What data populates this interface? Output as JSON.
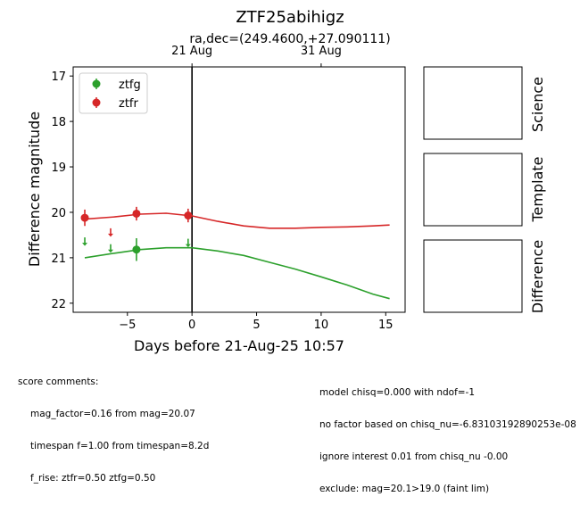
{
  "chart_data": {
    "type": "scatter",
    "title": "ZTF25abihigz",
    "subtitle": "ra,dec=(249.4600,+27.090111)",
    "xlabel": "Days before 21-Aug-25 10:57",
    "ylabel": "Difference magnitude",
    "xlim": [
      -9.2,
      16.5
    ],
    "ylim": [
      22.2,
      16.8
    ],
    "inverted_y": true,
    "grid": false,
    "legend_position": "top-left",
    "x_ticks": [
      -5,
      0,
      5,
      10,
      15
    ],
    "x_tick_labels": [
      "−5",
      "0",
      "5",
      "10",
      "15"
    ],
    "y_ticks": [
      17,
      18,
      19,
      20,
      21,
      22
    ],
    "y_tick_labels": [
      "17",
      "18",
      "19",
      "20",
      "21",
      "22"
    ],
    "top_axis": {
      "ticks": [
        0.0,
        10.0
      ],
      "labels": [
        "21 Aug",
        "31 Aug"
      ]
    },
    "vline_x": 0,
    "series": [
      {
        "name": "ztfg",
        "color": "#2ca02c",
        "detections": [
          {
            "x": -4.3,
            "y": 20.82,
            "err": 0.25
          }
        ],
        "upper_limits": [
          {
            "x": -8.3,
            "y": 20.65
          },
          {
            "x": -6.3,
            "y": 20.8
          },
          {
            "x": -0.3,
            "y": 20.68
          }
        ],
        "model_curve": [
          {
            "x": -8.3,
            "y": 21.0
          },
          {
            "x": -6,
            "y": 20.9
          },
          {
            "x": -4,
            "y": 20.82
          },
          {
            "x": -2,
            "y": 20.78
          },
          {
            "x": 0,
            "y": 20.78
          },
          {
            "x": 2,
            "y": 20.85
          },
          {
            "x": 4,
            "y": 20.95
          },
          {
            "x": 6,
            "y": 21.1
          },
          {
            "x": 8,
            "y": 21.25
          },
          {
            "x": 10,
            "y": 21.42
          },
          {
            "x": 12,
            "y": 21.6
          },
          {
            "x": 14,
            "y": 21.8
          },
          {
            "x": 15.3,
            "y": 21.9
          }
        ]
      },
      {
        "name": "ztfr",
        "color": "#d62728",
        "detections": [
          {
            "x": -8.3,
            "y": 20.12,
            "err": 0.18
          },
          {
            "x": -4.3,
            "y": 20.03,
            "err": 0.15
          },
          {
            "x": -0.3,
            "y": 20.07,
            "err": 0.15
          }
        ],
        "upper_limits": [
          {
            "x": -6.3,
            "y": 20.45
          }
        ],
        "model_curve": [
          {
            "x": -8.3,
            "y": 20.15
          },
          {
            "x": -6,
            "y": 20.1
          },
          {
            "x": -4,
            "y": 20.04
          },
          {
            "x": -2,
            "y": 20.02
          },
          {
            "x": 0,
            "y": 20.08
          },
          {
            "x": 2,
            "y": 20.2
          },
          {
            "x": 4,
            "y": 20.3
          },
          {
            "x": 6,
            "y": 20.35
          },
          {
            "x": 8,
            "y": 20.35
          },
          {
            "x": 10,
            "y": 20.33
          },
          {
            "x": 12,
            "y": 20.32
          },
          {
            "x": 14,
            "y": 20.3
          },
          {
            "x": 15.3,
            "y": 20.28
          }
        ]
      }
    ]
  },
  "panels": {
    "science": "Science",
    "template": "Template",
    "difference": "Difference"
  },
  "comments_left": {
    "header": "score comments:",
    "lines": [
      "mag_factor=0.16 from mag=20.07",
      "timespan f=1.00 from timespan=8.2d",
      "f_rise: ztfr=0.50 ztfg=0.50"
    ]
  },
  "comments_right": {
    "lines": [
      "model chisq=0.000 with ndof=-1",
      "no factor based on chisq_nu=-6.83103192890253e-08",
      "ignore interest 0.01 from chisq_nu -0.00",
      "exclude: mag=20.1>19.0 (faint lim)"
    ]
  }
}
